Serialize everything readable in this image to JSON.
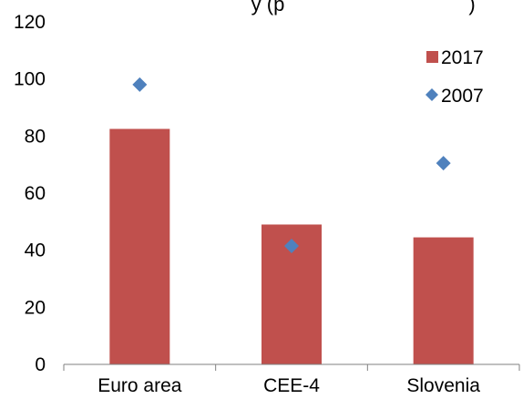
{
  "chart_data": {
    "type": "bar",
    "title_fragment": "y      (p",
    "title_fragment_right": ")",
    "categories": [
      "Euro area",
      "CEE-4",
      "Slovenia"
    ],
    "ylim": [
      0,
      120
    ],
    "yticks": [
      0,
      20,
      40,
      60,
      80,
      100,
      120
    ],
    "grid": false,
    "legend_position": "top-right",
    "series": [
      {
        "name": "2017",
        "kind": "bar",
        "color": "#c0504d",
        "values": [
          82.5,
          49,
          44.5
        ]
      },
      {
        "name": "2007",
        "kind": "marker",
        "marker": "diamond",
        "color": "#4f81bd",
        "values": [
          98,
          41.5,
          70.5
        ]
      }
    ]
  }
}
